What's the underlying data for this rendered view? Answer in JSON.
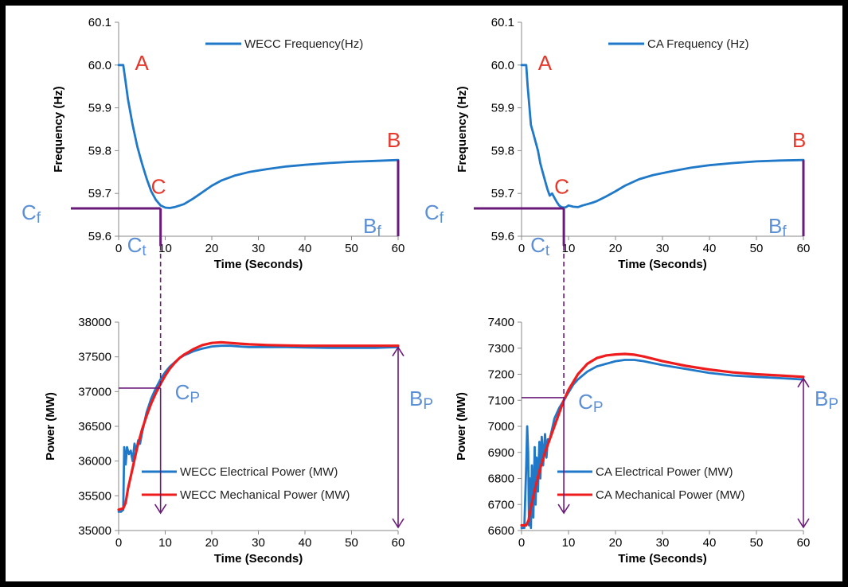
{
  "colors": {
    "electrical": "#1f78c8",
    "mechanical": "#ee1c1c",
    "annotation_red": "#e8372a",
    "annotation_blue": "#5b8fd6",
    "marker_purple": "#6a1a7a"
  },
  "chart_data": [
    {
      "id": "wecc-frequency",
      "type": "line",
      "title": "",
      "xlabel": "Time (Seconds)",
      "ylabel": "Frequency (Hz)",
      "xlim": [
        0,
        60
      ],
      "ylim": [
        59.6,
        60.1
      ],
      "x_ticks": [
        "0",
        "10",
        "20",
        "30",
        "40",
        "50",
        "60"
      ],
      "y_ticks": [
        "59.6",
        "59.7",
        "59.8",
        "59.9",
        "60.0",
        "60.1"
      ],
      "legend": "top-right",
      "grid": false,
      "series": [
        {
          "name": "WECC Frequency(Hz)",
          "color": "electrical",
          "x": [
            0,
            1,
            1.5,
            2,
            3,
            4,
            5,
            6,
            7,
            8,
            9,
            10,
            11,
            12,
            14,
            16,
            18,
            20,
            22,
            25,
            28,
            32,
            36,
            40,
            45,
            50,
            55,
            60
          ],
          "y": [
            60.0,
            60.0,
            59.96,
            59.92,
            59.86,
            59.81,
            59.77,
            59.735,
            59.705,
            59.685,
            59.672,
            59.667,
            59.666,
            59.668,
            59.675,
            59.688,
            59.703,
            59.718,
            59.73,
            59.742,
            59.75,
            59.757,
            59.763,
            59.767,
            59.771,
            59.774,
            59.776,
            59.778
          ]
        }
      ],
      "annotations": [
        {
          "label": "A",
          "x": 3,
          "y": 60.0
        },
        {
          "label": "C",
          "x": 9,
          "y": 59.67
        },
        {
          "label": "B",
          "x": 60,
          "y": 59.778
        },
        {
          "label": "C",
          "sub": "f",
          "y": 59.665
        },
        {
          "label": "C",
          "sub": "t",
          "x": 9
        },
        {
          "label": "B",
          "sub": "f",
          "x": 60
        }
      ]
    },
    {
      "id": "ca-frequency",
      "type": "line",
      "title": "",
      "xlabel": "Time (Seconds)",
      "ylabel": "Frequency (Hz)",
      "xlim": [
        0,
        60
      ],
      "ylim": [
        59.6,
        60.1
      ],
      "x_ticks": [
        "0",
        "10",
        "20",
        "30",
        "40",
        "50",
        "60"
      ],
      "y_ticks": [
        "59.6",
        "59.7",
        "59.8",
        "59.9",
        "60.0",
        "60.1"
      ],
      "legend": "top-right",
      "grid": false,
      "series": [
        {
          "name": "CA Frequency (Hz)",
          "color": "electrical",
          "x": [
            0,
            1,
            1.3,
            1.7,
            2,
            2.5,
            3,
            3.5,
            4,
            4.5,
            5,
            5.5,
            6,
            6.5,
            7,
            7.5,
            8,
            8.5,
            9,
            9.5,
            10,
            11,
            12,
            13,
            14,
            15,
            16,
            18,
            20,
            22,
            25,
            28,
            32,
            36,
            40,
            45,
            50,
            55,
            60
          ],
          "y": [
            60.0,
            60.0,
            59.95,
            59.9,
            59.86,
            59.84,
            59.82,
            59.8,
            59.77,
            59.75,
            59.73,
            59.71,
            59.695,
            59.7,
            59.69,
            59.68,
            59.672,
            59.668,
            59.667,
            59.668,
            59.672,
            59.669,
            59.668,
            59.672,
            59.675,
            59.678,
            59.682,
            59.693,
            59.705,
            59.718,
            59.733,
            59.743,
            59.752,
            59.76,
            59.766,
            59.771,
            59.775,
            59.777,
            59.778
          ]
        }
      ],
      "annotations": [
        {
          "label": "A",
          "x": 3,
          "y": 60.0
        },
        {
          "label": "C",
          "x": 9,
          "y": 59.67
        },
        {
          "label": "B",
          "x": 60,
          "y": 59.778
        },
        {
          "label": "C",
          "sub": "f",
          "y": 59.665
        },
        {
          "label": "C",
          "sub": "t",
          "x": 9
        },
        {
          "label": "B",
          "sub": "f",
          "x": 60
        }
      ]
    },
    {
      "id": "wecc-power",
      "type": "line",
      "title": "",
      "xlabel": "Time (Seconds)",
      "ylabel": "Power (MW)",
      "xlim": [
        0,
        60
      ],
      "ylim": [
        35000,
        38000
      ],
      "x_ticks": [
        "0",
        "10",
        "20",
        "30",
        "40",
        "50",
        "60"
      ],
      "y_ticks": [
        "35000",
        "35500",
        "36000",
        "36500",
        "37000",
        "37500",
        "38000"
      ],
      "legend": "bottom-center",
      "grid": false,
      "series": [
        {
          "name": "WECC Electrical Power (MW)",
          "color": "electrical",
          "x": [
            0,
            0.5,
            1,
            1.2,
            1.5,
            1.8,
            2.2,
            2.6,
            3,
            3.4,
            3.8,
            4.2,
            4.6,
            5,
            5.5,
            6,
            7,
            8,
            9,
            10,
            11,
            12,
            13,
            14,
            15,
            16,
            18,
            20,
            22,
            24,
            26,
            28,
            32,
            36,
            40,
            45,
            50,
            55,
            60
          ],
          "y": [
            35270,
            35270,
            35300,
            36200,
            35950,
            36200,
            36100,
            36150,
            36000,
            36250,
            36150,
            36300,
            36250,
            36400,
            36550,
            36700,
            36900,
            37050,
            37180,
            37280,
            37360,
            37420,
            37480,
            37520,
            37550,
            37580,
            37620,
            37650,
            37660,
            37660,
            37650,
            37640,
            37640,
            37640,
            37635,
            37630,
            37630,
            37630,
            37640
          ]
        },
        {
          "name": "WECC Mechanical Power (MW)",
          "color": "mechanical",
          "x": [
            0,
            1,
            1.5,
            2,
            3,
            4,
            5,
            6,
            7,
            8,
            9,
            10,
            11,
            12,
            13,
            14,
            15,
            16,
            18,
            20,
            22,
            24,
            26,
            28,
            32,
            36,
            40,
            45,
            50,
            55,
            60
          ],
          "y": [
            35300,
            35320,
            35400,
            35600,
            35900,
            36200,
            36450,
            36650,
            36830,
            36980,
            37110,
            37230,
            37330,
            37410,
            37480,
            37530,
            37570,
            37610,
            37670,
            37700,
            37710,
            37700,
            37690,
            37680,
            37670,
            37665,
            37660,
            37660,
            37660,
            37660,
            37660
          ]
        }
      ],
      "annotations": [
        {
          "label": "C",
          "sub": "P",
          "x": 9,
          "y": 37050
        },
        {
          "label": "B",
          "sub": "P",
          "x": 60
        }
      ]
    },
    {
      "id": "ca-power",
      "type": "line",
      "title": "",
      "xlabel": "Time (Seconds)",
      "ylabel": "Power (MW)",
      "xlim": [
        0,
        60
      ],
      "ylim": [
        6600,
        7400
      ],
      "x_ticks": [
        "0",
        "10",
        "20",
        "30",
        "40",
        "50",
        "60"
      ],
      "y_ticks": [
        "6600",
        "6700",
        "6800",
        "6900",
        "7000",
        "7100",
        "7200",
        "7300",
        "7400"
      ],
      "legend": "bottom-center",
      "grid": false,
      "series": [
        {
          "name": "CA Electrical Power (MW)",
          "color": "electrical",
          "x": [
            0,
            0.6,
            1,
            1.2,
            1.4,
            1.6,
            1.8,
            2,
            2.2,
            2.5,
            2.8,
            3,
            3.2,
            3.5,
            3.8,
            4,
            4.3,
            4.6,
            5,
            5.3,
            5.6,
            6,
            6.5,
            7,
            8,
            9,
            10,
            11,
            12,
            14,
            16,
            18,
            20,
            22,
            24,
            26,
            30,
            35,
            40,
            45,
            50,
            55,
            60
          ],
          "y": [
            6610,
            6610,
            6850,
            7000,
            6900,
            6620,
            6800,
            6610,
            6850,
            6650,
            6920,
            6700,
            6880,
            6750,
            6940,
            6800,
            6960,
            6850,
            6970,
            6880,
            6950,
            6950,
            6990,
            7030,
            7070,
            7100,
            7130,
            7160,
            7180,
            7210,
            7230,
            7240,
            7250,
            7255,
            7255,
            7250,
            7235,
            7220,
            7205,
            7195,
            7190,
            7185,
            7180
          ]
        },
        {
          "name": "CA Mechanical Power (MW)",
          "color": "mechanical",
          "x": [
            0,
            1,
            1.5,
            2,
            3,
            4,
            5,
            6,
            7,
            8,
            9,
            10,
            11,
            12,
            14,
            16,
            18,
            20,
            22,
            24,
            26,
            30,
            35,
            40,
            45,
            50,
            55,
            60
          ],
          "y": [
            6620,
            6620,
            6640,
            6690,
            6770,
            6840,
            6900,
            6950,
            7000,
            7050,
            7100,
            7140,
            7170,
            7200,
            7240,
            7262,
            7272,
            7276,
            7278,
            7275,
            7268,
            7250,
            7232,
            7218,
            7207,
            7200,
            7195,
            7190
          ]
        }
      ],
      "annotations": [
        {
          "label": "C",
          "sub": "P",
          "x": 9,
          "y": 7110
        },
        {
          "label": "B",
          "sub": "P",
          "x": 60
        }
      ]
    }
  ]
}
